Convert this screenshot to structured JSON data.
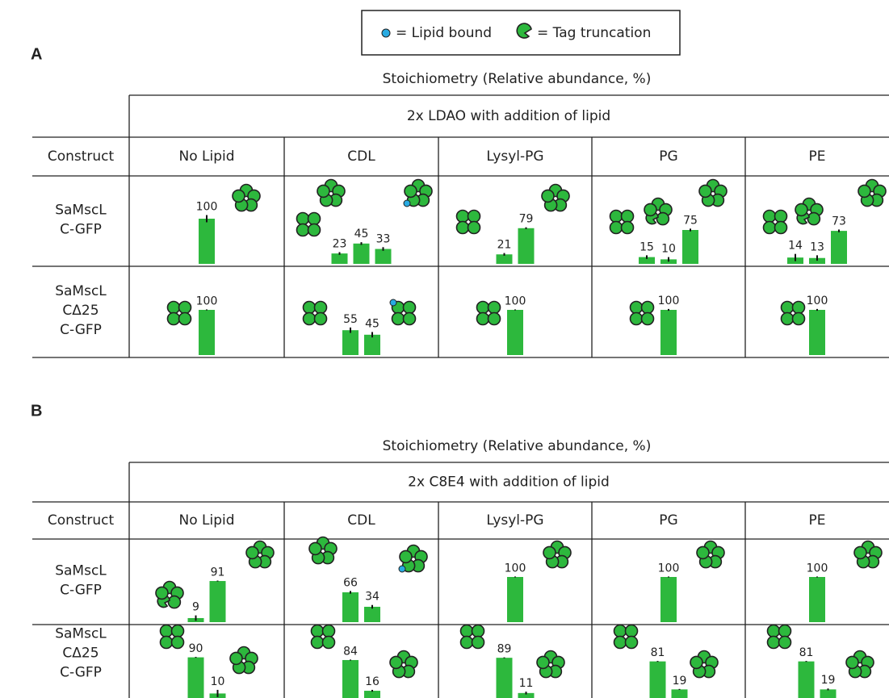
{
  "legend": {
    "lipid": "= Lipid bound",
    "truncation": "= Tag truncation"
  },
  "panels": [
    {
      "label": "A",
      "caption": "Stoichiometry (Relative abundance, %)",
      "condition": "2x LDAO with addition of lipid",
      "columns": [
        "Construct",
        "No Lipid",
        "CDL",
        "Lysyl-PG",
        "PG",
        "PE"
      ],
      "rows": [
        {
          "construct": [
            "SaMscL",
            "C-GFP"
          ],
          "cells": [
            {
              "values": [
                100
              ],
              "errors": [
                8
              ]
            },
            {
              "values": [
                23,
                45,
                33
              ],
              "errors": [
                3,
                3,
                4
              ]
            },
            {
              "values": [
                21,
                79
              ],
              "errors": [
                3,
                2
              ]
            },
            {
              "values": [
                15,
                10,
                75
              ],
              "errors": [
                4,
                5,
                3
              ]
            },
            {
              "values": [
                14,
                13,
                73
              ],
              "errors": [
                8,
                6,
                3
              ]
            }
          ]
        },
        {
          "construct": [
            "SaMscL",
            "CΔ25",
            "C-GFP"
          ],
          "cells": [
            {
              "values": [
                100
              ],
              "errors": [
                1
              ]
            },
            {
              "values": [
                55,
                45
              ],
              "errors": [
                6,
                6
              ]
            },
            {
              "values": [
                100
              ],
              "errors": [
                1
              ]
            },
            {
              "values": [
                100
              ],
              "errors": [
                2
              ]
            },
            {
              "values": [
                100
              ],
              "errors": [
                2
              ]
            }
          ]
        }
      ]
    },
    {
      "label": "B",
      "caption": "Stoichiometry (Relative abundance, %)",
      "condition": "2x C8E4 with addition of lipid",
      "columns": [
        "Construct",
        "No Lipid",
        "CDL",
        "Lysyl-PG",
        "PG",
        "PE"
      ],
      "rows": [
        {
          "construct": [
            "SaMscL",
            "C-GFP"
          ],
          "cells": [
            {
              "values": [
                9,
                91
              ],
              "errors": [
                6,
                1
              ]
            },
            {
              "values": [
                66,
                34
              ],
              "errors": [
                3,
                4
              ]
            },
            {
              "values": [
                100
              ],
              "errors": [
                1
              ]
            },
            {
              "values": [
                100
              ],
              "errors": [
                1
              ]
            },
            {
              "values": [
                100
              ],
              "errors": [
                1
              ]
            }
          ]
        },
        {
          "construct": [
            "SaMscL",
            "CΔ25",
            "C-GFP"
          ],
          "cells": [
            {
              "values": [
                90,
                10
              ],
              "errors": [
                1,
                8
              ]
            },
            {
              "values": [
                84,
                16
              ],
              "errors": [
                1,
                2
              ]
            },
            {
              "values": [
                89,
                11
              ],
              "errors": [
                1,
                3
              ]
            },
            {
              "values": [
                81,
                19
              ],
              "errors": [
                1,
                1
              ]
            },
            {
              "values": [
                81,
                19
              ],
              "errors": [
                1,
                2
              ]
            }
          ]
        }
      ]
    }
  ]
}
